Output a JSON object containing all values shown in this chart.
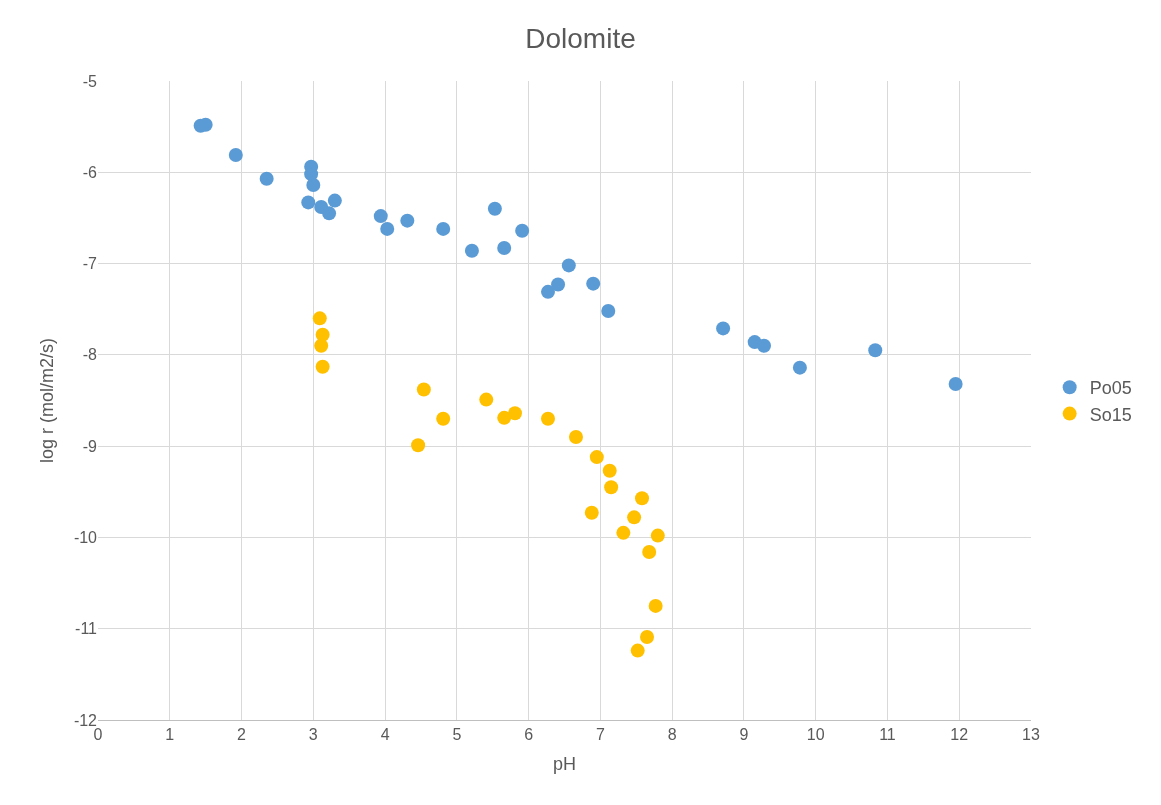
{
  "chart_data": {
    "type": "scatter",
    "title": "Dolomite",
    "xlabel": "pH",
    "ylabel": "log r (mol/m2/s)",
    "xlim": [
      0,
      13
    ],
    "xticks": [
      0,
      1,
      2,
      3,
      4,
      5,
      6,
      7,
      8,
      9,
      10,
      11,
      12,
      13
    ],
    "ylim": [
      -12,
      -5
    ],
    "yticks": [
      -12,
      -11,
      -10,
      -9,
      -8,
      -7,
      -6,
      -5
    ],
    "grid": true,
    "legend": "right",
    "marker": "circle",
    "series": [
      {
        "name": "Po05",
        "color": "#5b9bd5",
        "x": [
          1.43,
          1.5,
          1.92,
          2.35,
          2.97,
          2.97,
          3.0,
          2.93,
          3.11,
          3.22,
          3.3,
          3.94,
          4.03,
          4.31,
          4.81,
          5.21,
          5.53,
          5.66,
          5.91,
          6.56,
          6.27,
          6.41,
          6.9,
          7.11,
          8.71,
          9.15,
          9.28,
          9.78,
          10.83,
          11.95
        ],
        "values": [
          -5.49,
          -5.48,
          -5.81,
          -6.07,
          -5.94,
          -6.02,
          -6.14,
          -6.33,
          -6.38,
          -6.45,
          -6.31,
          -6.48,
          -6.62,
          -6.53,
          -6.62,
          -6.86,
          -6.4,
          -6.83,
          -6.64,
          -7.02,
          -7.31,
          -7.23,
          -7.22,
          -7.52,
          -7.71,
          -7.86,
          -7.9,
          -8.14,
          -7.95,
          -8.32
        ]
      },
      {
        "name": "So15",
        "color": "#ffc000",
        "x": [
          3.09,
          3.13,
          3.11,
          3.13,
          4.54,
          4.81,
          4.46,
          5.41,
          5.66,
          5.81,
          6.27,
          6.66,
          6.95,
          7.13,
          7.15,
          6.88,
          7.58,
          7.47,
          7.32,
          7.8,
          7.68,
          7.77,
          7.65,
          7.52
        ],
        "values": [
          -7.6,
          -7.78,
          -7.9,
          -8.13,
          -8.38,
          -8.7,
          -8.99,
          -8.49,
          -8.69,
          -8.64,
          -8.7,
          -8.9,
          -9.12,
          -9.27,
          -9.45,
          -9.73,
          -9.57,
          -9.78,
          -9.95,
          -9.98,
          -10.16,
          -10.75,
          -11.09,
          -11.24
        ]
      }
    ]
  }
}
